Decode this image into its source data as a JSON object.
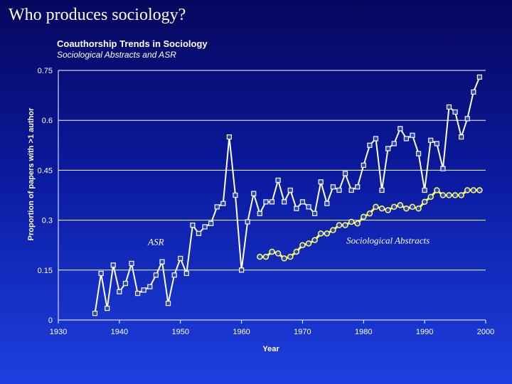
{
  "slide": {
    "title": "Who produces sociology?"
  },
  "chart_data": {
    "type": "line",
    "title": "Coauthorship Trends in Sociology",
    "subtitle": "Sociological Abstracts and ASR",
    "xlabel": "Year",
    "ylabel": "Proportion of papers with >1 author",
    "xlim": [
      1930,
      2000
    ],
    "ylim": [
      0,
      0.75
    ],
    "x_ticks": [
      "1930",
      "1940",
      "1950",
      "1960",
      "1970",
      "1980",
      "1990",
      "2000"
    ],
    "y_ticks": [
      "0",
      "0.15",
      "0.3",
      "0.45",
      "0.6",
      "0.75"
    ],
    "grid": "horizontal",
    "colors": {
      "asr": "#ffffff",
      "sociological_abstracts": "#ffff66",
      "grid": "#ffffff"
    },
    "annotations": [
      {
        "text": "ASR",
        "x": 1946,
        "y": 0.225
      },
      {
        "text": "Sociological Abstracts",
        "x": 1984,
        "y": 0.23
      }
    ],
    "series": [
      {
        "name": "ASR",
        "x": [
          1936,
          1937,
          1938,
          1939,
          1940,
          1941,
          1942,
          1943,
          1944,
          1945,
          1946,
          1947,
          1948,
          1949,
          1950,
          1951,
          1952,
          1953,
          1954,
          1955,
          1956,
          1957,
          1958,
          1959,
          1960,
          1961,
          1962,
          1963,
          1964,
          1965,
          1966,
          1967,
          1968,
          1969,
          1970,
          1971,
          1972,
          1973,
          1974,
          1975,
          1976,
          1977,
          1978,
          1979,
          1980,
          1981,
          1982,
          1983,
          1984,
          1985,
          1986,
          1987,
          1988,
          1989,
          1990,
          1991,
          1992,
          1993,
          1994,
          1995,
          1996,
          1997,
          1998,
          1999
        ],
        "y": [
          0.02,
          0.14,
          0.035,
          0.165,
          0.085,
          0.11,
          0.17,
          0.08,
          0.09,
          0.1,
          0.135,
          0.175,
          0.05,
          0.135,
          0.185,
          0.14,
          0.285,
          0.26,
          0.28,
          0.29,
          0.34,
          0.35,
          0.55,
          0.375,
          0.15,
          0.295,
          0.38,
          0.32,
          0.355,
          0.355,
          0.42,
          0.355,
          0.39,
          0.335,
          0.355,
          0.34,
          0.32,
          0.415,
          0.35,
          0.4,
          0.39,
          0.44,
          0.39,
          0.4,
          0.465,
          0.525,
          0.545,
          0.39,
          0.515,
          0.53,
          0.575,
          0.545,
          0.555,
          0.5,
          0.39,
          0.54,
          0.53,
          0.455,
          0.64,
          0.625,
          0.55,
          0.605,
          0.685,
          0.73
        ]
      },
      {
        "name": "Sociological Abstracts",
        "x": [
          1963,
          1964,
          1965,
          1966,
          1967,
          1968,
          1969,
          1970,
          1971,
          1972,
          1973,
          1974,
          1975,
          1976,
          1977,
          1978,
          1979,
          1980,
          1981,
          1982,
          1983,
          1984,
          1985,
          1986,
          1987,
          1988,
          1989,
          1990,
          1991,
          1992,
          1993,
          1994,
          1995,
          1996,
          1997,
          1998,
          1999
        ],
        "y": [
          0.19,
          0.19,
          0.205,
          0.2,
          0.185,
          0.19,
          0.205,
          0.225,
          0.23,
          0.24,
          0.26,
          0.26,
          0.27,
          0.285,
          0.285,
          0.295,
          0.29,
          0.31,
          0.32,
          0.34,
          0.335,
          0.33,
          0.34,
          0.345,
          0.335,
          0.34,
          0.335,
          0.355,
          0.37,
          0.39,
          0.375,
          0.375,
          0.375,
          0.375,
          0.39,
          0.39,
          0.39
        ]
      }
    ]
  }
}
